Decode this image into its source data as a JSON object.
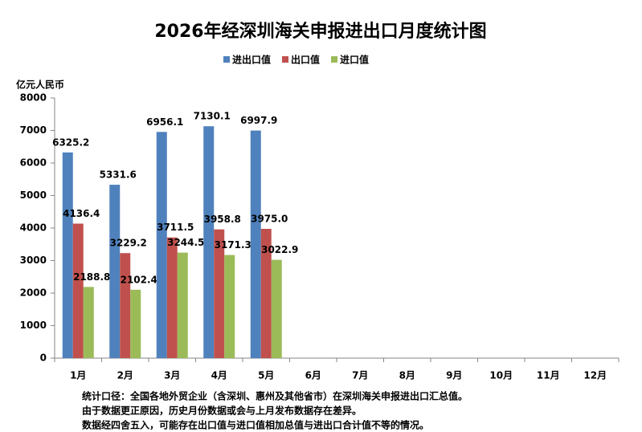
{
  "chart_data": {
    "type": "bar",
    "title": "2026年经深圳海关申报进出口月度统计图",
    "y_label": "亿元人民币",
    "categories": [
      "1月",
      "2月",
      "3月",
      "4月",
      "5月",
      "6月",
      "7月",
      "8月",
      "9月",
      "10月",
      "11月",
      "12月"
    ],
    "series": [
      {
        "name": "进出口值",
        "color": "#4f81bd",
        "values": [
          6325.2,
          5331.6,
          6956.1,
          7130.1,
          6997.9,
          null,
          null,
          null,
          null,
          null,
          null,
          null
        ],
        "value_labels": [
          "6325.2",
          "5331.6",
          "6956.1",
          "7130.1",
          "6997.9",
          null,
          null,
          null,
          null,
          null,
          null,
          null
        ]
      },
      {
        "name": "出口值",
        "color": "#c0504d",
        "values": [
          4136.4,
          3229.2,
          3711.5,
          3958.8,
          3975.0,
          null,
          null,
          null,
          null,
          null,
          null,
          null
        ],
        "value_labels": [
          "4136.4",
          "3229.2",
          "3711.5",
          "3958.8",
          "3975.0",
          null,
          null,
          null,
          null,
          null,
          null,
          null
        ]
      },
      {
        "name": "进口值",
        "color": "#9bbb59",
        "values": [
          2188.8,
          2102.4,
          3244.5,
          3171.3,
          3022.9,
          null,
          null,
          null,
          null,
          null,
          null,
          null
        ],
        "value_labels": [
          "2188.8",
          "2102.4",
          "3244.5",
          "3171.3",
          "3022.9",
          null,
          null,
          null,
          null,
          null,
          null,
          null
        ]
      }
    ],
    "ylim": [
      0,
      8000
    ],
    "yticks": [
      0,
      1000,
      2000,
      3000,
      4000,
      5000,
      6000,
      7000,
      8000
    ],
    "grid": false,
    "legend": "top",
    "notes": [
      "统计口径：全国各地外贸企业（含深圳、惠州及其他省市）在深圳海关申报进出口汇总值。",
      "由于数据更正原因，历史月份数据或会与上月发布数据存在差异。",
      "数据经四舍五入，可能存在出口值与进口值相加总值与进出口合计值不等的情况。"
    ]
  }
}
